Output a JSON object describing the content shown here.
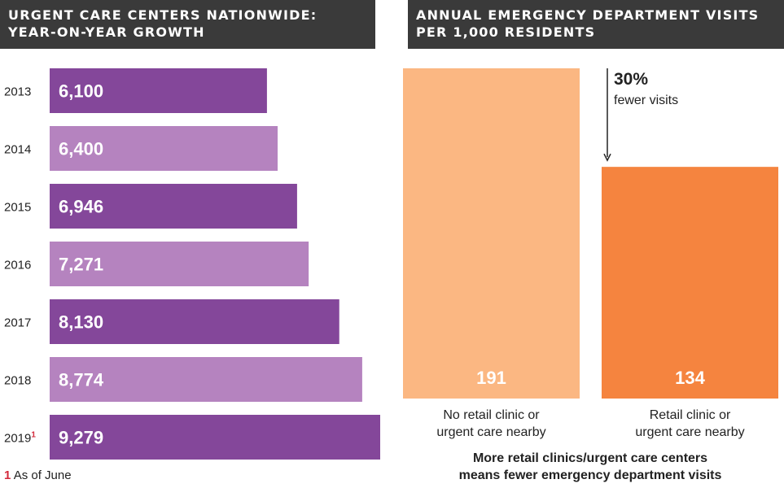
{
  "left_panel": {
    "title_line1": "URGENT CARE CENTERS NATIONWIDE:",
    "title_line2": "YEAR-ON-YEAR GROWTH"
  },
  "right_panel": {
    "title_line1": "ANNUAL EMERGENCY DEPARTMENT VISITS",
    "title_line2": "PER 1,000 RESIDENTS",
    "annotation_value": "30%",
    "annotation_text": "fewer visits",
    "bottom_note_line1": "More retail clinics/urgent care centers",
    "bottom_note_line2": "means fewer emergency department visits"
  },
  "footnote": {
    "mark": "1",
    "text": "As of June"
  },
  "colors": {
    "header_bg": "#3a3a3a",
    "purple_dark": "#84479a",
    "purple_light": "#b583bf",
    "orange_light": "#fbb782",
    "orange_dark": "#f5843f",
    "footnote_red": "#d32a3c"
  },
  "chart_data": [
    {
      "type": "bar",
      "orientation": "horizontal",
      "title": "URGENT CARE CENTERS NATIONWIDE: YEAR-ON-YEAR GROWTH",
      "categories": [
        "2013",
        "2014",
        "2015",
        "2016",
        "2017",
        "2018",
        "2019"
      ],
      "category_footnotes": [
        "",
        "",
        "",
        "",
        "",
        "",
        "1"
      ],
      "values": [
        6100,
        6400,
        6946,
        7271,
        8130,
        8774,
        9279
      ],
      "value_labels": [
        "6,100",
        "6,400",
        "6,946",
        "7,271",
        "8,130",
        "8,774",
        "9,279"
      ],
      "bar_colors": [
        "#84479a",
        "#b583bf",
        "#84479a",
        "#b583bf",
        "#84479a",
        "#b583bf",
        "#84479a"
      ],
      "xlabel": "",
      "ylabel": "",
      "grid": false,
      "legend": "none"
    },
    {
      "type": "bar",
      "orientation": "vertical",
      "title": "ANNUAL EMERGENCY DEPARTMENT VISITS PER 1,000 RESIDENTS",
      "categories": [
        [
          "No retail clinic or",
          "urgent care nearby"
        ],
        [
          "Retail clinic or",
          "urgent care nearby"
        ]
      ],
      "values": [
        191,
        134
      ],
      "value_labels": [
        "191",
        "134"
      ],
      "bar_colors": [
        "#fbb782",
        "#f5843f"
      ],
      "ylim": [
        0,
        191
      ],
      "xlabel": "",
      "ylabel": "",
      "grid": false,
      "legend": "none"
    }
  ]
}
